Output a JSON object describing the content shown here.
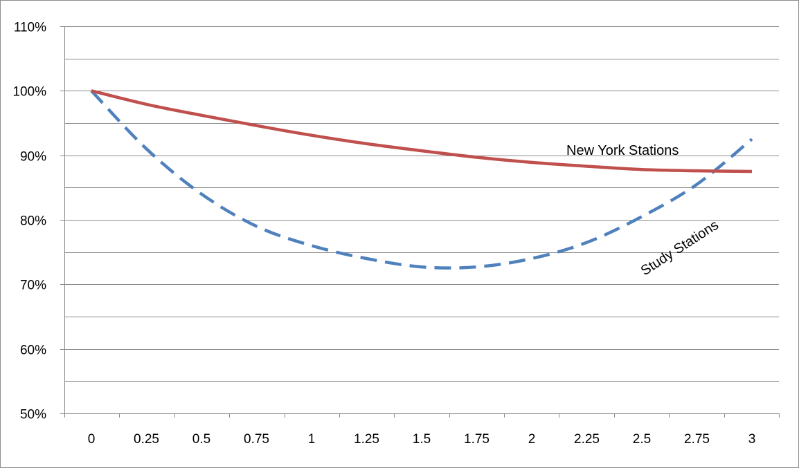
{
  "chart_data": {
    "type": "line",
    "title": "",
    "xlabel": "",
    "ylabel": "",
    "x": [
      0,
      0.25,
      0.5,
      0.75,
      1,
      1.25,
      1.5,
      1.75,
      2,
      2.25,
      2.5,
      2.75,
      3
    ],
    "x_tick_labels": [
      "0",
      "0.25",
      "0.5",
      "0.75",
      "1",
      "1.25",
      "1.5",
      "1.75",
      "2",
      "2.25",
      "2.5",
      "2.75",
      "3"
    ],
    "ylim": [
      0.5,
      1.1
    ],
    "y_ticks": [
      0.5,
      0.6,
      0.7,
      0.8,
      0.9,
      1.0,
      1.1
    ],
    "y_tick_labels": [
      "50%",
      "60%",
      "70%",
      "80%",
      "90%",
      "100%",
      "110%"
    ],
    "y_format": "percent",
    "grid": {
      "horizontal": true,
      "vertical": false,
      "minor_horizontal_every": 0.05
    },
    "legend": "none",
    "series": [
      {
        "name": "New York Stations",
        "label": "New York Stations",
        "color": "#c0504d",
        "style": "solid",
        "values": [
          1.0,
          0.979,
          0.962,
          0.946,
          0.931,
          0.918,
          0.907,
          0.897,
          0.889,
          0.883,
          0.878,
          0.876,
          0.875
        ]
      },
      {
        "name": "Study Stations",
        "label": "Study Stations",
        "color": "#4f81bd",
        "style": "dashed",
        "values": [
          1.0,
          0.91,
          0.84,
          0.79,
          0.76,
          0.74,
          0.727,
          0.727,
          0.74,
          0.765,
          0.805,
          0.855,
          0.925
        ]
      }
    ]
  }
}
